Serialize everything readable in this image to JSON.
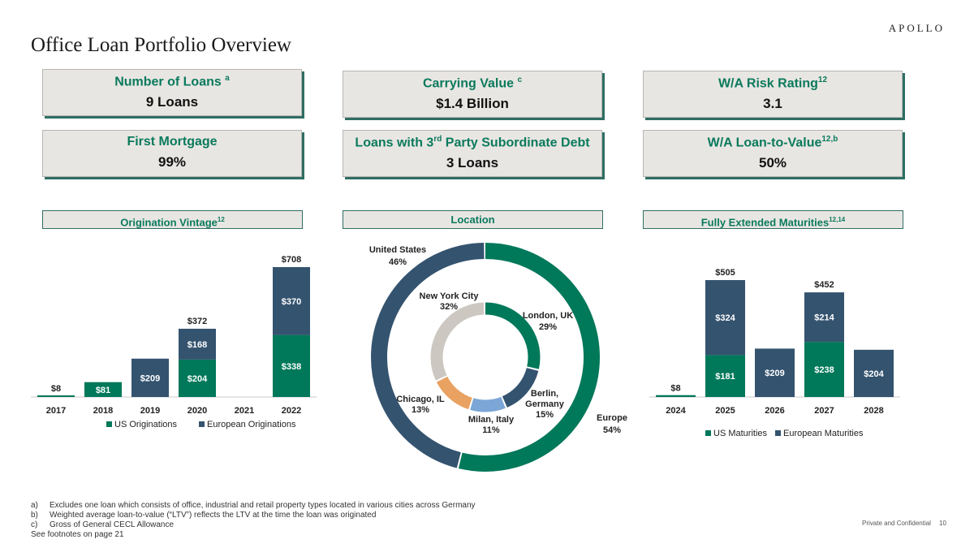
{
  "brand": "APOLLO",
  "page_title": "Office Loan Portfolio Overview",
  "kpis": [
    {
      "label": "Number of Loans",
      "sup": "a",
      "value": "9 Loans"
    },
    {
      "label": "Carrying Value",
      "sup": "c",
      "value": "$1.4 Billion"
    },
    {
      "label": "W/A Risk Rating",
      "sup": "12",
      "value": "3.1"
    },
    {
      "label": "First Mortgage",
      "sup": "",
      "value": "99%"
    },
    {
      "label_pre": "Loans with 3",
      "label_sup": "rd",
      "label_post": " Party Subordinate Debt",
      "value": "3 Loans"
    },
    {
      "label": "W/A Loan-to-Value",
      "sup": "12,b",
      "value": "50%"
    }
  ],
  "sections": {
    "vintage": {
      "label": "Origination Vintage",
      "sup": "12"
    },
    "location": {
      "label": "Location"
    },
    "maturities": {
      "label": "Fully Extended Maturities",
      "sup": "12,14"
    }
  },
  "colors": {
    "us": "#00785a",
    "europe": "#34536f",
    "light_gray": "#cdc7c1",
    "orange": "#e9a261",
    "light_blue": "#7ba6d6"
  },
  "chart_data": [
    {
      "type": "bar",
      "title": "Origination Vintage",
      "stacked": true,
      "categories": [
        "2017",
        "2018",
        "2019",
        "2020",
        "2021",
        "2022"
      ],
      "series": [
        {
          "name": "US Originations",
          "values": [
            8,
            81,
            0,
            204,
            0,
            338
          ],
          "labels": [
            "$8",
            "$81",
            "",
            "$204",
            "",
            "$338"
          ]
        },
        {
          "name": "European Originations",
          "values": [
            0,
            0,
            209,
            168,
            0,
            370
          ],
          "labels": [
            "",
            "",
            "$209",
            "$168",
            "",
            "$370"
          ]
        }
      ],
      "totals": [
        "",
        "",
        "",
        "$372",
        "",
        "$708"
      ],
      "ylim": [
        0,
        708
      ],
      "grid": false,
      "legend": "bottom"
    },
    {
      "type": "pie",
      "subtype": "double-donut",
      "title": "Location",
      "outer": [
        {
          "name": "Europe",
          "value": 54,
          "label": "Europe",
          "pct": "54%"
        },
        {
          "name": "United States",
          "value": 46,
          "label": "United States",
          "pct": "46%"
        }
      ],
      "inner": [
        {
          "name": "London, UK",
          "value": 29,
          "label": "London, UK",
          "pct": "29%"
        },
        {
          "name": "Berlin, Germany",
          "value": 15,
          "label_lines": [
            "Berlin,",
            "Germany"
          ],
          "pct": "15%"
        },
        {
          "name": "Milan, Italy",
          "value": 11,
          "label": "Milan, Italy",
          "pct": "11%"
        },
        {
          "name": "Chicago, IL",
          "value": 13,
          "label": "Chicago, IL",
          "pct": "13%"
        },
        {
          "name": "New York City",
          "value": 32,
          "label": "New York City",
          "pct": "32%"
        }
      ]
    },
    {
      "type": "bar",
      "title": "Fully Extended Maturities",
      "stacked": true,
      "categories": [
        "2024",
        "2025",
        "2026",
        "2027",
        "2028"
      ],
      "series": [
        {
          "name": "US Maturities",
          "values": [
            8,
            181,
            0,
            238,
            0
          ],
          "labels": [
            "$8",
            "$181",
            "",
            "$238",
            ""
          ]
        },
        {
          "name": "European Maturities",
          "values": [
            0,
            324,
            209,
            214,
            204
          ],
          "labels": [
            "",
            "$324",
            "$209",
            "$214",
            "$204"
          ]
        }
      ],
      "totals": [
        "",
        "$505",
        "",
        "$452",
        ""
      ],
      "ylim": [
        0,
        505
      ],
      "grid": false,
      "legend": "bottom"
    }
  ],
  "footnotes": [
    {
      "mark": "a)",
      "text": "Excludes one loan which consists of office, industrial and retail property types located in various cities across Germany"
    },
    {
      "mark": "b)",
      "text": "Weighted average loan-to-value (“LTV”) reflects the LTV at the time the loan was originated"
    },
    {
      "mark": "c)",
      "text": "Gross of General CECL Allowance"
    }
  ],
  "see_footnotes": "See footnotes on page 21",
  "confidential": "Private and Confidential",
  "page_number": "10"
}
